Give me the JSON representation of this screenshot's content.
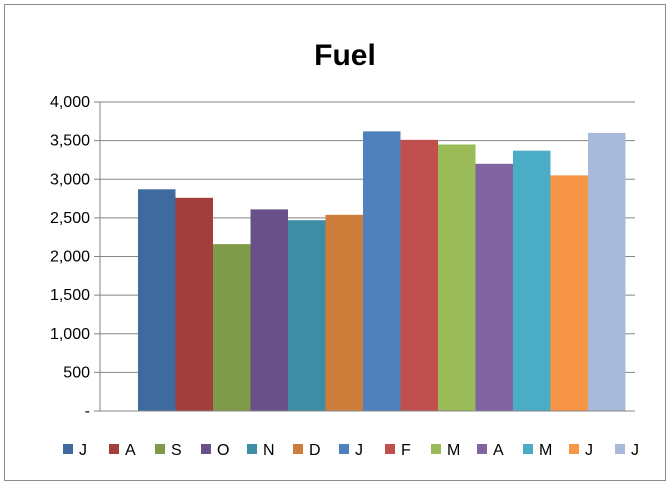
{
  "chart_data": {
    "type": "bar",
    "title": "Fuel",
    "xlabel": "",
    "ylabel": "",
    "ylim": [
      0,
      4000
    ],
    "yticks": [
      0,
      500,
      1000,
      1500,
      2000,
      2500,
      3000,
      3500,
      4000
    ],
    "ytick_labels": [
      "-",
      "500",
      "1,000",
      "1,500",
      "2,000",
      "2,500",
      "3,000",
      "3,500",
      "4,000"
    ],
    "grid": true,
    "legend_position": "bottom",
    "categories": [
      "J",
      "A",
      "S",
      "O",
      "N",
      "D",
      "J",
      "F",
      "M",
      "A",
      "M",
      "J",
      "J"
    ],
    "values": [
      2870,
      2760,
      2160,
      2610,
      2470,
      2540,
      3620,
      3510,
      3450,
      3200,
      3370,
      3050,
      3600
    ],
    "colors": [
      "#3f6aa0",
      "#a23f3c",
      "#7f9a48",
      "#6a5088",
      "#3d8ea5",
      "#cf7d3a",
      "#4f81bd",
      "#c0504d",
      "#9bbb59",
      "#8064a2",
      "#4bacc6",
      "#f79646",
      "#a9b9d9"
    ]
  }
}
